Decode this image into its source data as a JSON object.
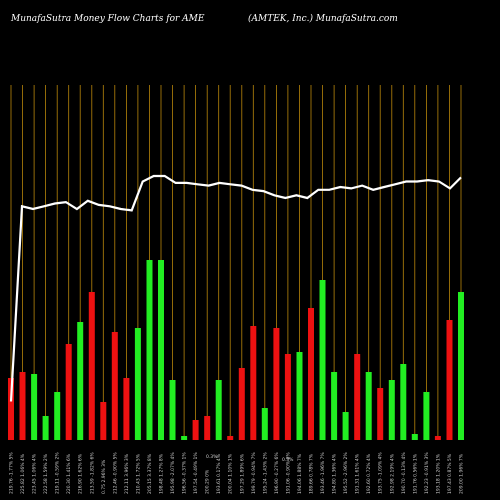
{
  "header": {
    "left": "MunafaSutra  Money Flow  Charts for AME",
    "right": "(AMTEK,  Inc.) MunafaSutra.com"
  },
  "colors": {
    "background": "#000000",
    "grid": "#b8860b",
    "up": "#22ee22",
    "down": "#ee1111",
    "line": "#ffffff"
  },
  "chart_data": {
    "type": "bar",
    "bar_axis": {
      "min": 0,
      "max": 1
    },
    "line_axis": {
      "min": 0,
      "max": 1
    },
    "bars": [
      {
        "label": "219.76 -1.77% 5%",
        "value": 0.31,
        "dir": "down"
      },
      {
        "label": "225.82 1.06% 4%",
        "value": 0.34,
        "dir": "down"
      },
      {
        "label": "223.45 1.06% 4%",
        "value": 0.33,
        "dir": "up"
      },
      {
        "label": "222.58 1.59% 2%",
        "value": 0.12,
        "dir": "up"
      },
      {
        "label": "219.11 -0.59% 2%",
        "value": 0.24,
        "dir": "up"
      },
      {
        "label": "220.30 1.41% 6%",
        "value": 0.48,
        "dir": "down"
      },
      {
        "label": "216.90 1.62% 6%",
        "value": 0.59,
        "dir": "up"
      },
      {
        "label": "213.59 -1.82% 6%",
        "value": 0.74,
        "dir": "down"
      },
      {
        "label": "0.75 2.96% 3%",
        "value": 0.19,
        "dir": "down"
      },
      {
        "label": "212.46 -0.90% 5%",
        "value": 0.54,
        "dir": "down"
      },
      {
        "label": "212.11 3.96% 3%",
        "value": 0.31,
        "dir": "down"
      },
      {
        "label": "210.43 1.72% 5%",
        "value": 0.56,
        "dir": "up"
      },
      {
        "label": "205.15 3.37% 8%",
        "value": 0.9,
        "dir": "up"
      },
      {
        "label": "198.48 1.27% 8%",
        "value": 0.9,
        "dir": "up"
      },
      {
        "label": "195.98 -2.07% 4%",
        "value": 0.3,
        "dir": "up"
      },
      {
        "label": "196.56 -0.37% 1%",
        "value": 0.02,
        "dir": "up"
      },
      {
        "label": "197.54 -0.49% 1%",
        "value": 0.1,
        "dir": "down"
      },
      {
        "label": "200.29 0%",
        "value": 0.12,
        "dir": "down"
      },
      {
        "label": "193.61 0.17% 4%",
        "value": 0.3,
        "dir": "up"
      },
      {
        "label": "200.04 1.10% 1%",
        "value": 0.02,
        "dir": "down"
      },
      {
        "label": "197.29 1.89% 6%",
        "value": 0.36,
        "dir": "down"
      },
      {
        "label": "199.79 -0.94% 7%",
        "value": 0.57,
        "dir": "down"
      },
      {
        "label": "195.24 -1.43% 2%",
        "value": 0.16,
        "dir": "up"
      },
      {
        "label": "196.90 -0.27% 6%",
        "value": 0.56,
        "dir": "down"
      },
      {
        "label": "191.06 -0.90% 6%",
        "value": 0.43,
        "dir": "down"
      },
      {
        "label": "194.06 1.88% 7%",
        "value": 0.44,
        "dir": "up"
      },
      {
        "label": "189.66 0.78% 7%",
        "value": 0.66,
        "dir": "down"
      },
      {
        "label": "193.46 -1.96% 7%",
        "value": 0.8,
        "dir": "up"
      },
      {
        "label": "194.80 1.36% 4%",
        "value": 0.34,
        "dir": "up"
      },
      {
        "label": "195.52 -2.96% 2%",
        "value": 0.14,
        "dir": "up"
      },
      {
        "label": "191.31 1.61% 4%",
        "value": 0.43,
        "dir": "down"
      },
      {
        "label": "192.60 0.72% 4%",
        "value": 0.34,
        "dir": "up"
      },
      {
        "label": "193.75 -1.09% 4%",
        "value": 0.26,
        "dir": "down"
      },
      {
        "label": "192.98 2.19% 4%",
        "value": 0.3,
        "dir": "up"
      },
      {
        "label": "190.70 -0.13% 4%",
        "value": 0.38,
        "dir": "up"
      },
      {
        "label": "191.76 0.56% 1%",
        "value": 0.03,
        "dir": "up"
      },
      {
        "label": "192.23 -0.91% 3%",
        "value": 0.24,
        "dir": "up"
      },
      {
        "label": "193.18 1.20% 1%",
        "value": 0.02,
        "dir": "down"
      },
      {
        "label": "197.43 0.87% 5%",
        "value": 0.6,
        "dir": "down"
      },
      {
        "label": "209.00 1.96% 7%",
        "value": 0.74,
        "dir": "up"
      }
    ],
    "line": [
      0.14,
      0.85,
      0.84,
      0.85,
      0.86,
      0.865,
      0.84,
      0.87,
      0.855,
      0.85,
      0.84,
      0.835,
      0.94,
      0.96,
      0.96,
      0.935,
      0.935,
      0.93,
      0.925,
      0.935,
      0.93,
      0.925,
      0.91,
      0.905,
      0.89,
      0.88,
      0.89,
      0.88,
      0.91,
      0.91,
      0.92,
      0.915,
      0.925,
      0.91,
      0.92,
      0.93,
      0.94,
      0.94,
      0.945,
      0.94,
      0.915,
      0.955
    ],
    "annotations": [
      "0.3%",
      "0.3%"
    ]
  }
}
